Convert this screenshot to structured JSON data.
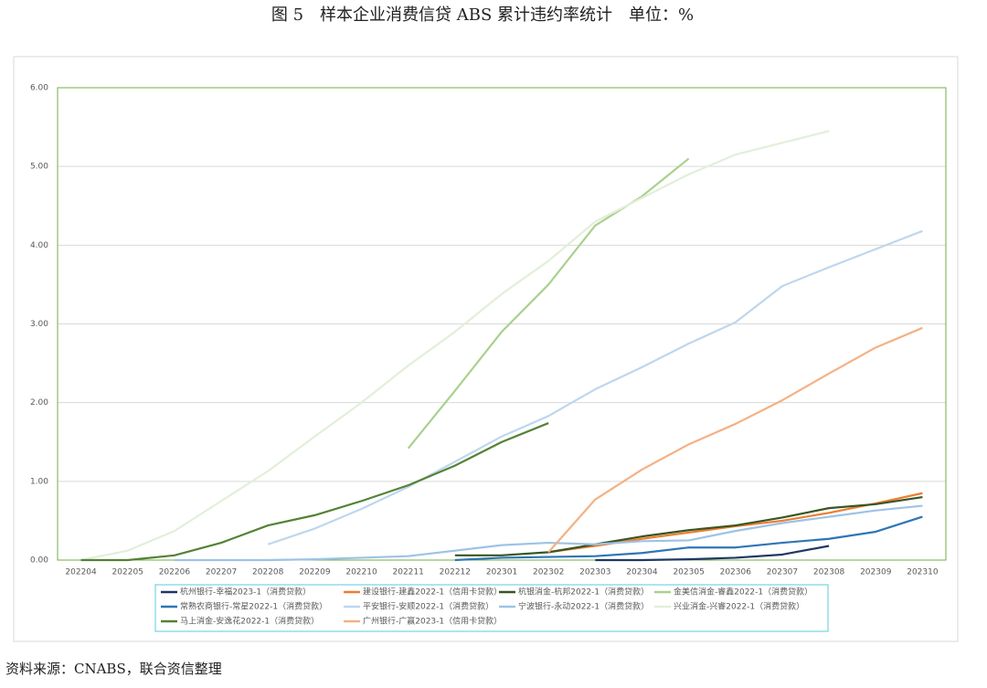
{
  "chart_data": {
    "type": "line",
    "title": "图 5　样本企业消费信贷 ABS 累计违约率统计　单位：%",
    "source": "资料来源：CNABS，联合资信整理",
    "categories": [
      "202204",
      "202205",
      "202206",
      "202207",
      "202208",
      "202209",
      "202210",
      "202211",
      "202212",
      "202301",
      "202302",
      "202303",
      "202304",
      "202305",
      "202306",
      "202307",
      "202308",
      "202309",
      "202310"
    ],
    "ylim": [
      0,
      6
    ],
    "yticks": [
      {
        "value": 0,
        "label": "0.00"
      },
      {
        "value": 1,
        "label": "1.00"
      },
      {
        "value": 2,
        "label": "2.00"
      },
      {
        "value": 3,
        "label": "3.00"
      },
      {
        "value": 4,
        "label": "4.00"
      },
      {
        "value": 5,
        "label": "5.00"
      },
      {
        "value": 6,
        "label": "6.00"
      }
    ],
    "grid": true,
    "legend": "bottom",
    "series": [
      {
        "name": "杭州银行-幸福2023-1（消费贷款）",
        "color": "#1f3864",
        "values": [
          null,
          null,
          null,
          null,
          null,
          null,
          null,
          null,
          null,
          null,
          null,
          0,
          0,
          0.01,
          0.03,
          0.07,
          0.18,
          null,
          null
        ]
      },
      {
        "name": "建设银行-建鑫2022-1（信用卡贷款）",
        "color": "#ed7d31",
        "values": [
          null,
          null,
          null,
          null,
          null,
          null,
          null,
          null,
          null,
          null,
          0.1,
          0.18,
          0.27,
          0.35,
          0.43,
          0.5,
          0.6,
          0.72,
          0.85
        ]
      },
      {
        "name": "杭银消金-杭邦2022-1（消费贷款）",
        "color": "#375623",
        "values": [
          null,
          null,
          null,
          null,
          null,
          null,
          null,
          null,
          0.06,
          0.06,
          0.1,
          0.2,
          0.3,
          0.38,
          0.44,
          0.54,
          0.66,
          0.71,
          0.8
        ]
      },
      {
        "name": "金美信消金-睿鑫2022-1（消费贷款）",
        "color": "#a9d18e",
        "values": [
          null,
          null,
          null,
          null,
          null,
          null,
          null,
          1.42,
          2.15,
          2.9,
          3.5,
          4.25,
          4.62,
          5.1,
          null,
          null,
          null,
          null,
          null
        ]
      },
      {
        "name": "常熟农商银行-常星2022-1（消费贷款）",
        "color": "#2e75b6",
        "values": [
          null,
          null,
          null,
          null,
          null,
          null,
          null,
          null,
          0,
          0.03,
          0.04,
          0.05,
          0.09,
          0.16,
          0.16,
          0.22,
          0.27,
          0.36,
          0.55
        ]
      },
      {
        "name": "平安银行-安顺2022-1（消费贷款）",
        "color": "#bdd7ee",
        "values": [
          null,
          null,
          null,
          null,
          0.2,
          0.4,
          0.65,
          0.93,
          1.25,
          1.57,
          1.83,
          2.17,
          2.45,
          2.75,
          3.02,
          3.48,
          3.72,
          3.95,
          4.18
        ]
      },
      {
        "name": "宁波银行-永动2022-1（消费贷款）",
        "color": "#9dc3e6",
        "values": [
          null,
          null,
          0,
          0,
          0,
          0.01,
          0.03,
          0.05,
          0.12,
          0.19,
          0.22,
          0.2,
          0.24,
          0.25,
          0.37,
          0.47,
          0.55,
          0.63,
          0.69
        ]
      },
      {
        "name": "兴业消金-兴睿2022-1（消费贷款）",
        "color": "#e2efd9",
        "values": [
          0,
          0.12,
          0.37,
          0.75,
          1.13,
          1.57,
          2.0,
          2.47,
          2.9,
          3.38,
          3.8,
          4.3,
          4.6,
          4.9,
          5.15,
          5.3,
          5.45,
          null,
          null
        ]
      },
      {
        "name": "马上消金-安逸花2022-1（消费贷款）",
        "color": "#548235",
        "values": [
          0,
          0,
          0.06,
          0.22,
          0.44,
          0.57,
          0.75,
          0.95,
          1.2,
          1.5,
          1.74,
          null,
          null,
          null,
          null,
          null,
          null,
          null,
          null
        ]
      },
      {
        "name": "广州银行-广赢2023-1（信用卡贷款）",
        "color": "#f4b183",
        "values": [
          null,
          null,
          null,
          null,
          null,
          null,
          null,
          null,
          null,
          null,
          0.1,
          0.77,
          1.15,
          1.47,
          1.73,
          2.03,
          2.37,
          2.7,
          2.95
        ]
      }
    ]
  }
}
